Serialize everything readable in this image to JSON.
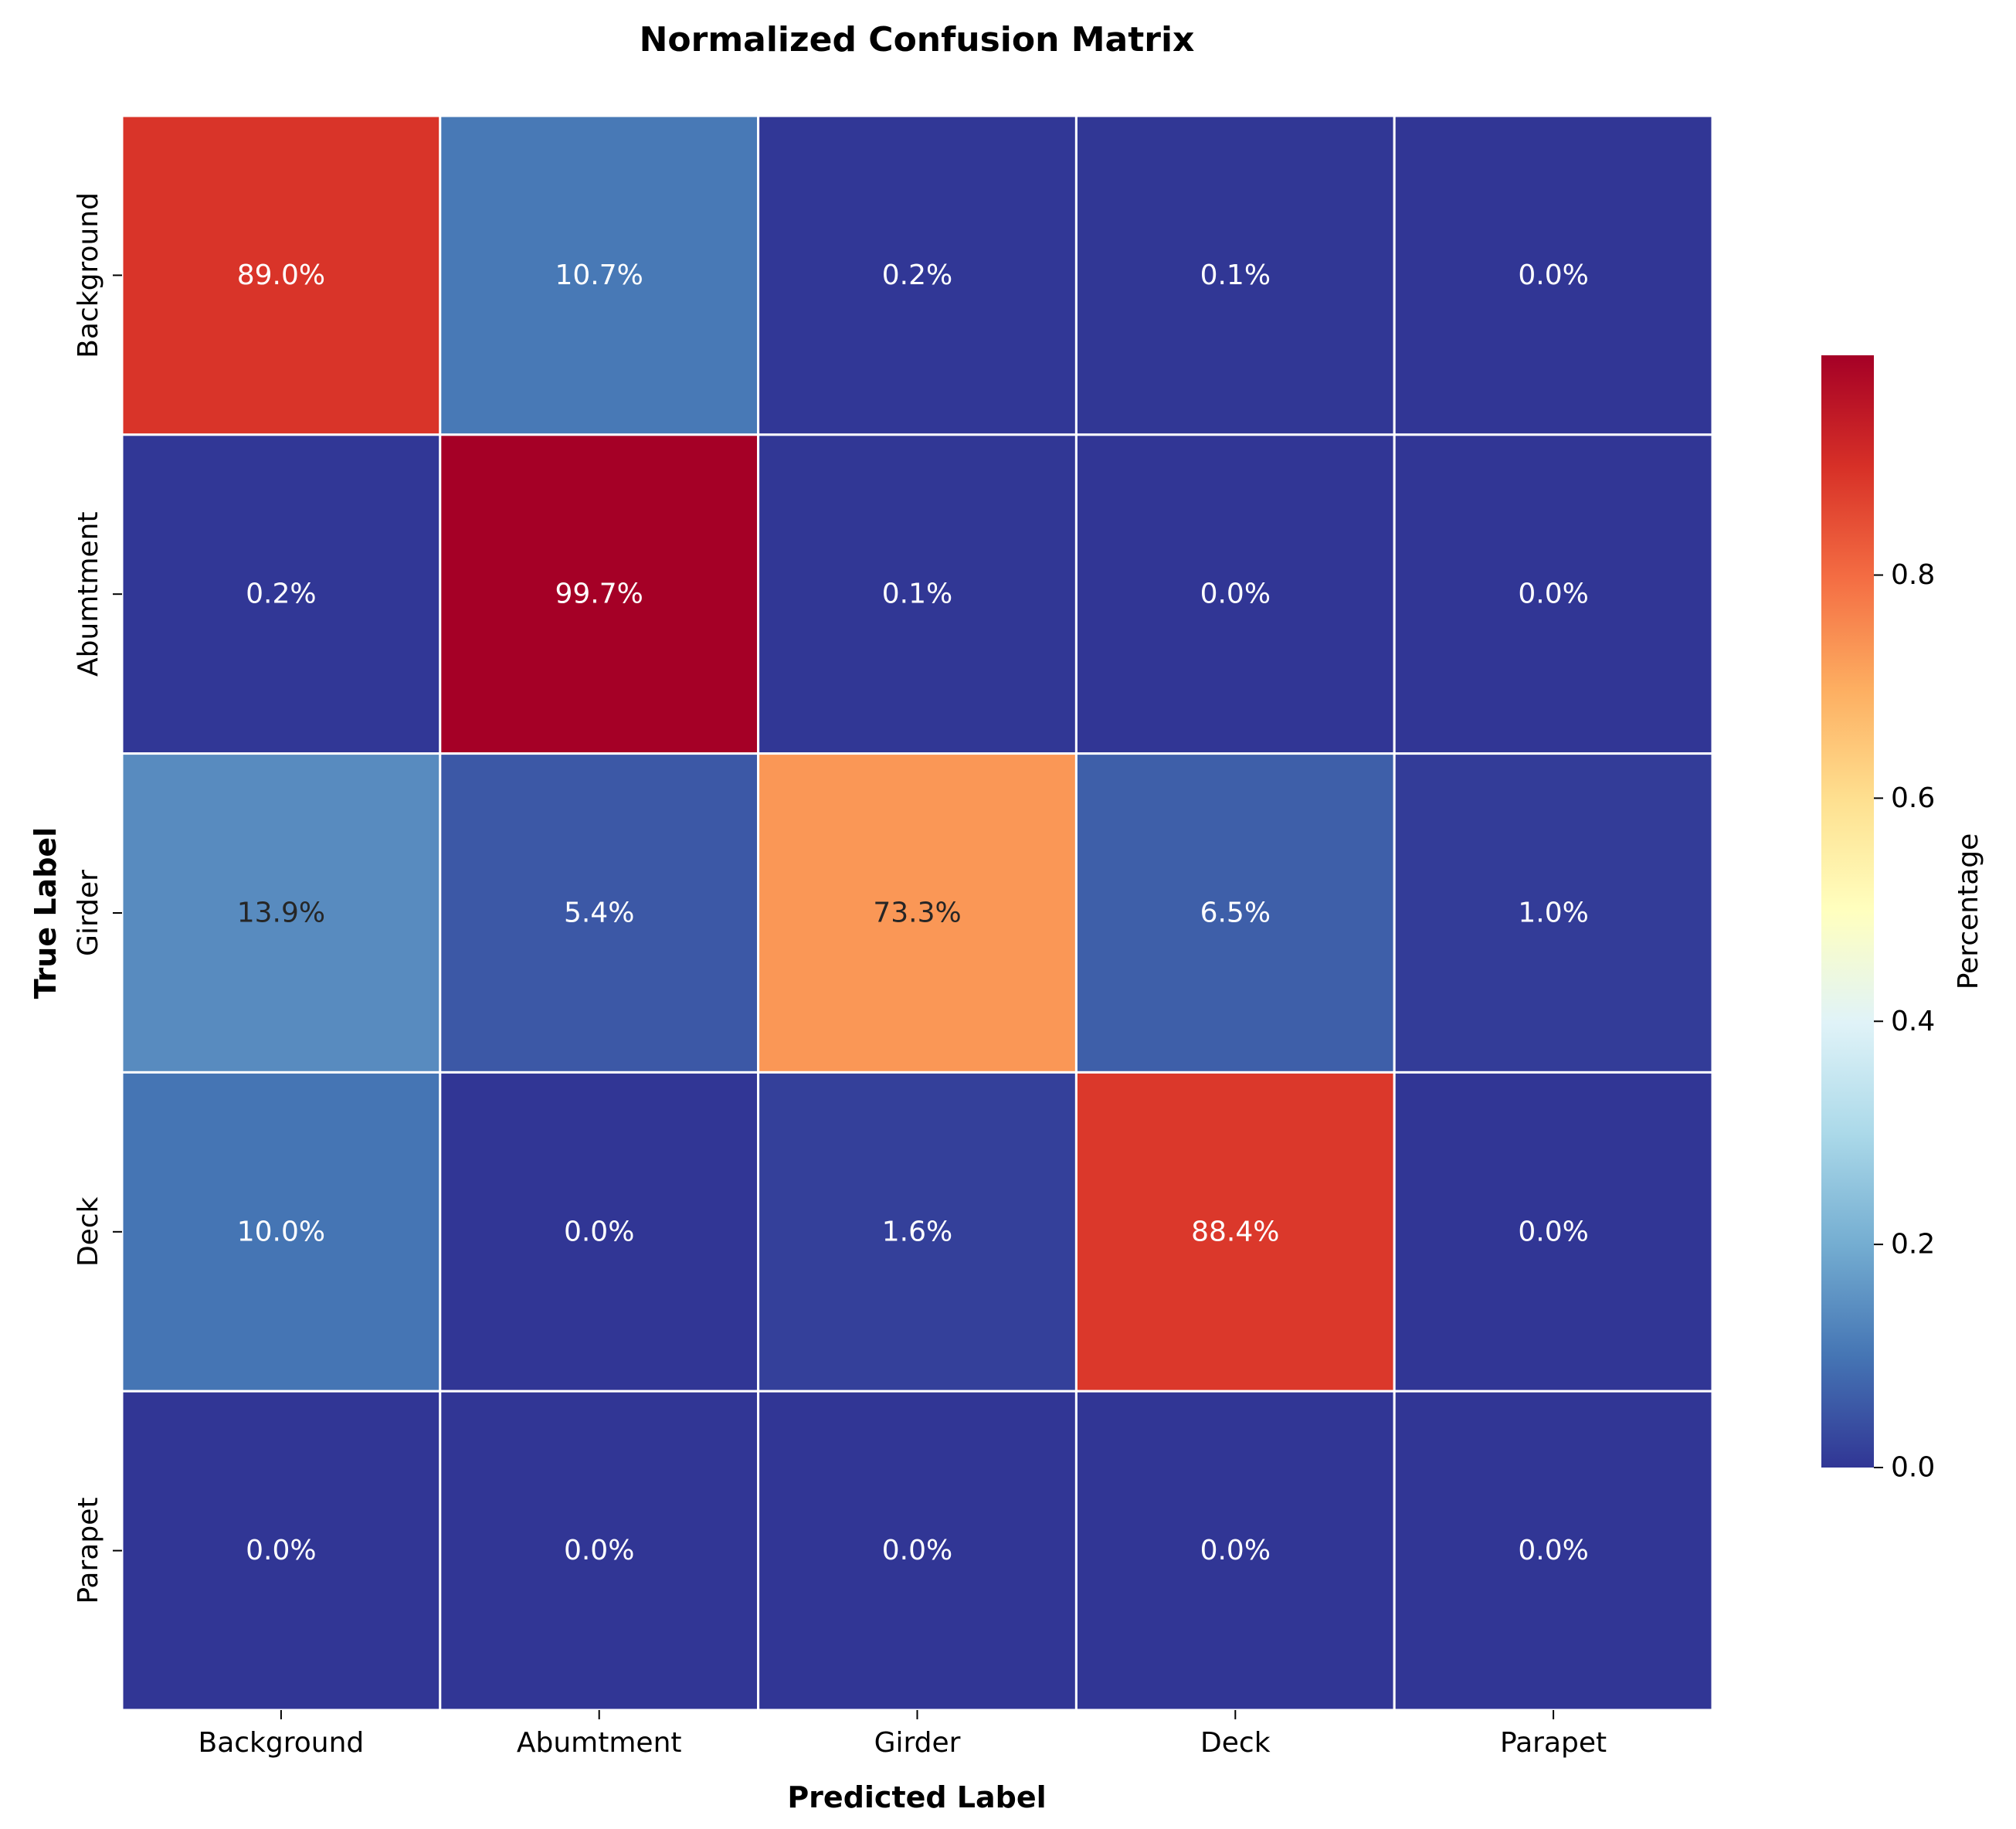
{
  "chart_data": {
    "type": "heatmap",
    "title": "Normalized Confusion Matrix",
    "xlabel": "Predicted Label",
    "ylabel": "True Label",
    "x_categories": [
      "Background",
      "Abumtment",
      "Girder",
      "Deck",
      "Parapet"
    ],
    "y_categories": [
      "Background",
      "Abumtment",
      "Girder",
      "Deck",
      "Parapet"
    ],
    "values": [
      [
        0.89,
        0.107,
        0.002,
        0.001,
        0.0
      ],
      [
        0.002,
        0.997,
        0.001,
        0.0,
        0.0
      ],
      [
        0.139,
        0.054,
        0.733,
        0.065,
        0.01
      ],
      [
        0.1,
        0.0,
        0.016,
        0.884,
        0.0
      ],
      [
        0.0,
        0.0,
        0.0,
        0.0,
        0.0
      ]
    ],
    "cell_labels": [
      [
        "89.0%",
        "10.7%",
        "0.2%",
        "0.1%",
        "0.0%"
      ],
      [
        "0.2%",
        "99.7%",
        "0.1%",
        "0.0%",
        "0.0%"
      ],
      [
        "13.9%",
        "5.4%",
        "73.3%",
        "6.5%",
        "1.0%"
      ],
      [
        "10.0%",
        "0.0%",
        "1.6%",
        "88.4%",
        "0.0%"
      ],
      [
        "0.0%",
        "0.0%",
        "0.0%",
        "0.0%",
        "0.0%"
      ]
    ],
    "colormap": "RdYlBu_r",
    "colorbar": {
      "label": "Percentage",
      "range": [
        0.0,
        0.997
      ],
      "ticks": [
        0.0,
        0.2,
        0.4,
        0.6,
        0.8
      ],
      "tick_labels": [
        "0.0",
        "0.2",
        "0.4",
        "0.6",
        "0.8"
      ]
    },
    "grid": false
  }
}
